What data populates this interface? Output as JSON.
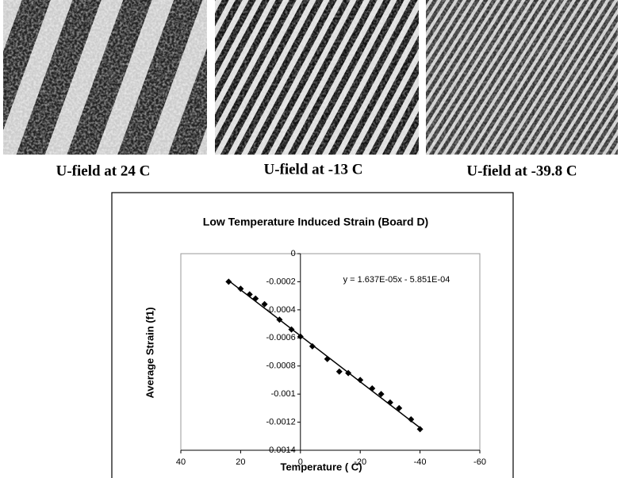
{
  "images": [
    {
      "caption": "U-field at 24 C"
    },
    {
      "caption": "U-field at -13 C"
    },
    {
      "caption": "U-field at -39.8 C"
    }
  ],
  "chart_data": {
    "type": "scatter",
    "title": "Low Temperature Induced Strain (Board D)",
    "xlabel": "Temperature ( C)",
    "ylabel": "Average Strain (f1)",
    "x": [
      24,
      20,
      17,
      15,
      12,
      7,
      3,
      0,
      -4,
      -9,
      -13,
      -16,
      -20,
      -24,
      -27,
      -30,
      -33,
      -37,
      -40
    ],
    "values": [
      -0.0002,
      -0.00025,
      -0.00029,
      -0.00032,
      -0.00036,
      -0.00047,
      -0.00054,
      -0.00059,
      -0.00066,
      -0.00075,
      -0.00084,
      -0.00085,
      -0.0009,
      -0.00096,
      -0.001,
      -0.00106,
      -0.0011,
      -0.00118,
      -0.00125
    ],
    "color": "#000000",
    "trendline": {
      "slope": 1.637e-05,
      "intercept": -0.0005851,
      "label": "y = 1.637E-05x - 5.851E-04"
    },
    "xlim": [
      40,
      -60
    ],
    "xticks": [
      40,
      20,
      0,
      -20,
      -40,
      -60
    ],
    "ylim": [
      0,
      -0.0014
    ],
    "yticks": [
      0,
      -0.0002,
      -0.0004,
      -0.0006,
      -0.0008,
      -0.001,
      -0.0012,
      -0.0014
    ]
  }
}
